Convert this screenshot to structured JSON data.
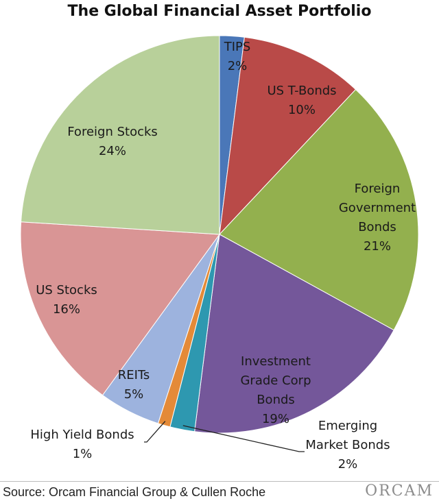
{
  "chart_data": {
    "type": "pie",
    "title": "The Global Financial Asset Portfolio",
    "slices": [
      {
        "name": "TIPS",
        "value": 2,
        "label_lines": [
          "TIPS"
        ],
        "value_label": "2%",
        "color": "#4a77b8"
      },
      {
        "name": "US T-Bonds",
        "value": 10,
        "label_lines": [
          "US T-Bonds"
        ],
        "value_label": "10%",
        "color": "#b94a48"
      },
      {
        "name": "Foreign Government Bonds",
        "value": 21,
        "label_lines": [
          "Foreign",
          "Government",
          "Bonds"
        ],
        "value_label": "21%",
        "color": "#93b04e"
      },
      {
        "name": "Investment Grade Corp Bonds",
        "value": 19,
        "label_lines": [
          "Investment",
          "Grade Corp",
          "Bonds"
        ],
        "value_label": "19%",
        "color": "#74579a"
      },
      {
        "name": "Emerging Market Bonds",
        "value": 2,
        "label_lines": [
          "Emerging",
          "Market Bonds"
        ],
        "value_label": "2%",
        "color": "#2e98b0"
      },
      {
        "name": "High Yield Bonds",
        "value": 1,
        "label_lines": [
          "High Yield Bonds"
        ],
        "value_label": "1%",
        "color": "#e48a38"
      },
      {
        "name": "REITs",
        "value": 5,
        "label_lines": [
          "REITs"
        ],
        "value_label": "5%",
        "color": "#9db3de"
      },
      {
        "name": "US Stocks",
        "value": 16,
        "label_lines": [
          "US Stocks"
        ],
        "value_label": "16%",
        "color": "#d99595"
      },
      {
        "name": "Foreign Stocks",
        "value": 24,
        "label_lines": [
          "Foreign Stocks"
        ],
        "value_label": "24%",
        "color": "#b8d09a"
      }
    ],
    "start_angle": "12 o'clock",
    "direction": "clockwise",
    "legend": "none"
  },
  "footer": {
    "source": "Source: Orcam Financial Group & Cullen Roche",
    "logo": "ORCAM"
  }
}
